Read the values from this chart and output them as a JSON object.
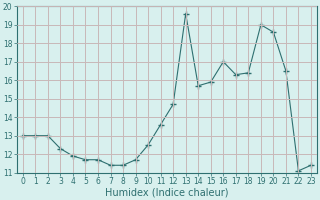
{
  "x": [
    0,
    1,
    2,
    3,
    4,
    5,
    6,
    7,
    8,
    9,
    10,
    11,
    12,
    13,
    14,
    15,
    16,
    17,
    18,
    19,
    20,
    21,
    22,
    23
  ],
  "y": [
    13.0,
    13.0,
    13.0,
    12.3,
    11.9,
    11.7,
    11.7,
    11.4,
    11.4,
    11.7,
    12.5,
    13.6,
    14.7,
    19.6,
    15.7,
    15.9,
    17.0,
    16.3,
    16.4,
    19.0,
    18.6,
    16.5,
    11.1,
    11.4
  ],
  "line_color": "#2e7070",
  "marker": "+",
  "marker_size": 4,
  "bg_color": "#d8f0ee",
  "grid_color": "#c8b8b8",
  "xlabel": "Humidex (Indice chaleur)",
  "xlim": [
    -0.5,
    23.5
  ],
  "ylim": [
    11.0,
    20.0
  ],
  "yticks": [
    11,
    12,
    13,
    14,
    15,
    16,
    17,
    18,
    19,
    20
  ],
  "xticks": [
    0,
    1,
    2,
    3,
    4,
    5,
    6,
    7,
    8,
    9,
    10,
    11,
    12,
    13,
    14,
    15,
    16,
    17,
    18,
    19,
    20,
    21,
    22,
    23
  ],
  "tick_fontsize": 5.5,
  "label_fontsize": 7
}
